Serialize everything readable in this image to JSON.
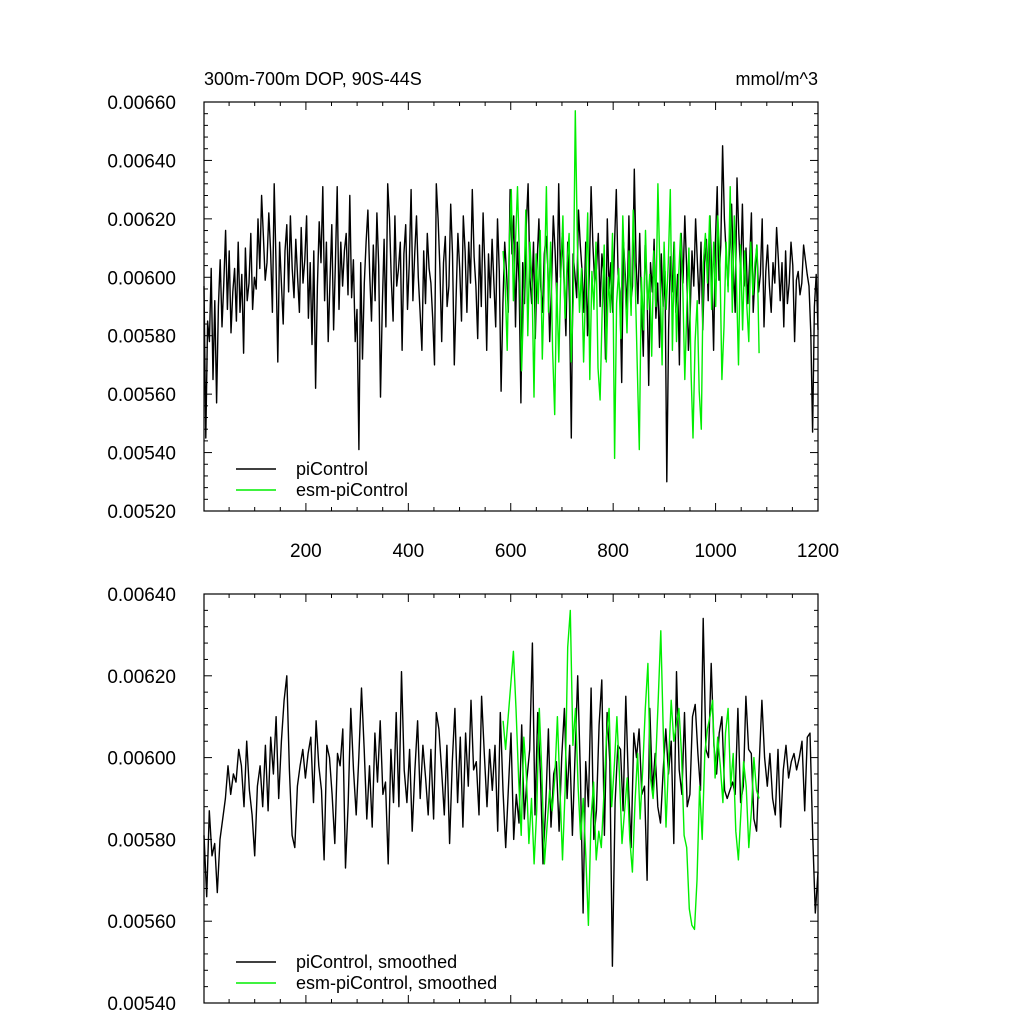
{
  "chart_data": [
    {
      "type": "line",
      "title": "300m-700m DOP, 90S-44S",
      "units": "mmol/m^3",
      "xlim": [
        1,
        1200
      ],
      "ylim": [
        0.0052,
        0.0066
      ],
      "x_ticks": [
        200,
        400,
        600,
        800,
        1000,
        1200
      ],
      "y_ticks": [
        "0.00520",
        "0.00540",
        "0.00560",
        "0.00580",
        "0.00600",
        "0.00620",
        "0.00640",
        "0.00660"
      ],
      "legend_position": "bottom-left",
      "series": [
        {
          "name": "piControl",
          "color": "#000000",
          "x_start": 1,
          "x_end": 1200,
          "values": [
            0.00597,
            0.00545,
            0.00585,
            0.00578,
            0.00603,
            0.00565,
            0.00592,
            0.00557,
            0.0059,
            0.00606,
            0.00583,
            0.00598,
            0.00616,
            0.00589,
            0.00609,
            0.00581,
            0.00595,
            0.00603,
            0.00585,
            0.00612,
            0.00588,
            0.00601,
            0.00574,
            0.0061,
            0.00592,
            0.00598,
            0.00615,
            0.00589,
            0.006,
            0.00596,
            0.0062,
            0.00603,
            0.00628,
            0.00614,
            0.00599,
            0.00605,
            0.00622,
            0.00609,
            0.00588,
            0.00632,
            0.00605,
            0.00571,
            0.00612,
            0.00598,
            0.00584,
            0.00609,
            0.00618,
            0.00595,
            0.00621,
            0.00603,
            0.00593,
            0.00613,
            0.006,
            0.00588,
            0.00617,
            0.00598,
            0.00606,
            0.00621,
            0.00586,
            0.00605,
            0.00577,
            0.00609,
            0.00562,
            0.00597,
            0.00619,
            0.00605,
            0.00631,
            0.00592,
            0.00612,
            0.00578,
            0.00599,
            0.00618,
            0.00582,
            0.00605,
            0.00631,
            0.00589,
            0.00612,
            0.00597,
            0.00609,
            0.00615,
            0.00594,
            0.00628,
            0.00593,
            0.00606,
            0.00578,
            0.00589,
            0.00541,
            0.00605,
            0.00572,
            0.00598,
            0.00612,
            0.00623,
            0.00601,
            0.00585,
            0.00611,
            0.00592,
            0.00622,
            0.00604,
            0.00559,
            0.0059,
            0.00613,
            0.00583,
            0.00632,
            0.0062,
            0.00599,
            0.00585,
            0.00621,
            0.00597,
            0.00603,
            0.00612,
            0.00575,
            0.00608,
            0.00618,
            0.00589,
            0.00605,
            0.0063,
            0.00592,
            0.00608,
            0.00621,
            0.006,
            0.00588,
            0.00575,
            0.00609,
            0.00591,
            0.00615,
            0.00603,
            0.00598,
            0.00586,
            0.0057,
            0.00632,
            0.0062,
            0.00603,
            0.00578,
            0.00605,
            0.00614,
            0.0059,
            0.00597,
            0.00625,
            0.00608,
            0.0057,
            0.00593,
            0.00615,
            0.00603,
            0.00585,
            0.00621,
            0.00609,
            0.00588,
            0.00612,
            0.00598,
            0.0063,
            0.00607,
            0.00597,
            0.00579,
            0.00611,
            0.0059,
            0.00622,
            0.00603,
            0.00575,
            0.00608,
            0.00593,
            0.00613,
            0.00598,
            0.00583,
            0.0062,
            0.00602,
            0.00561,
            0.00591,
            0.00612,
            0.00602,
            0.00588,
            0.0063,
            0.00608,
            0.00621,
            0.00583,
            0.00612,
            0.00598,
            0.00557,
            0.00605,
            0.00591,
            0.00618,
            0.00632,
            0.006,
            0.00591,
            0.00612,
            0.00579,
            0.00605,
            0.0062,
            0.00597,
            0.00588,
            0.00608,
            0.00614,
            0.00603,
            0.00578,
            0.00597,
            0.00621,
            0.00609,
            0.00592,
            0.00632,
            0.006,
            0.00615,
            0.00598,
            0.0058,
            0.00612,
            0.00591,
            0.00545,
            0.00608,
            0.00601,
            0.00593,
            0.00623,
            0.00611,
            0.00602,
            0.00588,
            0.00612,
            0.0058,
            0.00601,
            0.00631,
            0.00611,
            0.00598,
            0.00603,
            0.00615,
            0.0059,
            0.00608,
            0.00601,
            0.00572,
            0.0062,
            0.00596,
            0.00605,
            0.00588,
            0.00611,
            0.0063,
            0.00601,
            0.00595,
            0.00564,
            0.00612,
            0.00601,
            0.00589,
            0.00621,
            0.00591,
            0.00597,
            0.00637,
            0.00605,
            0.00591,
            0.00615,
            0.0059,
            0.00573,
            0.00611,
            0.00599,
            0.00563,
            0.00605,
            0.00595,
            0.00613,
            0.00586,
            0.00598,
            0.00576,
            0.00608,
            0.0059,
            0.00602,
            0.0053,
            0.00582,
            0.00607,
            0.00595,
            0.00612,
            0.00588,
            0.00601,
            0.0057,
            0.00615,
            0.00598,
            0.00621,
            0.00604,
            0.00575,
            0.00588,
            0.00609,
            0.00597,
            0.0062,
            0.00605,
            0.00591,
            0.00612,
            0.00582,
            0.00605,
            0.00613,
            0.00592,
            0.00621,
            0.006,
            0.00575,
            0.00612,
            0.00631,
            0.00599,
            0.00611,
            0.00645,
            0.0062,
            0.00608,
            0.00597,
            0.00612,
            0.00625,
            0.00603,
            0.00588,
            0.00634,
            0.00615,
            0.00601,
            0.00625,
            0.00597,
            0.0061,
            0.00591,
            0.00605,
            0.00622,
            0.00588,
            0.00601,
            0.00611,
            0.00595,
            0.00601,
            0.0062,
            0.00583,
            0.00602,
            0.00611,
            0.00597,
            0.00588,
            0.00605,
            0.00598,
            0.00617,
            0.00606,
            0.00592,
            0.00605,
            0.00583,
            0.00609,
            0.00591,
            0.00598,
            0.00612,
            0.00604,
            0.00578,
            0.00599,
            0.00602,
            0.00594,
            0.00598,
            0.00611,
            0.00606,
            0.00601,
            0.00597,
            0.00581,
            0.00547,
            0.0059,
            0.00601,
            0.00582
          ]
        },
        {
          "name": "esm-piControl",
          "color": "#00ee00",
          "x_start": 585,
          "x_end": 1085,
          "values": [
            0.00609,
            0.00598,
            0.00575,
            0.00612,
            0.0063,
            0.00592,
            0.00612,
            0.00631,
            0.00605,
            0.00568,
            0.00592,
            0.00623,
            0.0058,
            0.00612,
            0.00598,
            0.00559,
            0.00608,
            0.00591,
            0.00616,
            0.00572,
            0.00599,
            0.00631,
            0.00588,
            0.00612,
            0.00575,
            0.00553,
            0.00598,
            0.00571,
            0.00602,
            0.00621,
            0.00586,
            0.00605,
            0.00615,
            0.00571,
            0.00592,
            0.00657,
            0.00611,
            0.00588,
            0.00603,
            0.00571,
            0.00598,
            0.00622,
            0.00565,
            0.00602,
            0.00589,
            0.00612,
            0.00569,
            0.00558,
            0.00589,
            0.00611,
            0.00571,
            0.006,
            0.00588,
            0.00615,
            0.00538,
            0.00591,
            0.00603,
            0.00579,
            0.00621,
            0.00599,
            0.00581,
            0.00609,
            0.00587,
            0.00623,
            0.00599,
            0.00569,
            0.00541,
            0.006,
            0.00582,
            0.00616,
            0.00589,
            0.00601,
            0.00573,
            0.00609,
            0.0059,
            0.00632,
            0.00601,
            0.0057,
            0.00612,
            0.00589,
            0.00605,
            0.0063,
            0.00575,
            0.00612,
            0.00578,
            0.006,
            0.00615,
            0.00598,
            0.00565,
            0.00589,
            0.0061,
            0.00568,
            0.00545,
            0.00578,
            0.00592,
            0.00561,
            0.00548,
            0.00605,
            0.00615,
            0.00598,
            0.00621,
            0.00589,
            0.00612,
            0.0059,
            0.00621,
            0.00606,
            0.00565,
            0.00583,
            0.00612,
            0.00595,
            0.00631,
            0.00588,
            0.00621,
            0.00599,
            0.0057,
            0.00611,
            0.00582,
            0.00609,
            0.00591,
            0.00578,
            0.00612,
            0.00594,
            0.00605,
            0.00611,
            0.00574
          ]
        }
      ]
    },
    {
      "type": "line",
      "title": "",
      "xlim": [
        1,
        1200
      ],
      "ylim": [
        0.0054,
        0.0064
      ],
      "y_ticks": [
        "0.00540",
        "0.00560",
        "0.00580",
        "0.00600",
        "0.00620",
        "0.00640"
      ],
      "legend_position": "bottom-left",
      "series": [
        {
          "name": "piControl, smoothed",
          "color": "#000000",
          "x_start": 1,
          "x_end": 1200,
          "values": [
            0.00581,
            0.00566,
            0.00587,
            0.00576,
            0.00579,
            0.00567,
            0.0058,
            0.00585,
            0.0059,
            0.00598,
            0.00591,
            0.00596,
            0.00594,
            0.00602,
            0.00598,
            0.00588,
            0.00604,
            0.00592,
            0.00586,
            0.00576,
            0.00593,
            0.00598,
            0.00588,
            0.00603,
            0.00587,
            0.00605,
            0.00596,
            0.0061,
            0.0059,
            0.00604,
            0.00614,
            0.0062,
            0.00597,
            0.00581,
            0.00578,
            0.00593,
            0.00598,
            0.00602,
            0.00595,
            0.00601,
            0.00605,
            0.00589,
            0.00609,
            0.00598,
            0.00592,
            0.00575,
            0.00603,
            0.006,
            0.00591,
            0.00579,
            0.00601,
            0.00598,
            0.00607,
            0.00573,
            0.00589,
            0.00612,
            0.00597,
            0.00586,
            0.006,
            0.00617,
            0.00602,
            0.00585,
            0.00598,
            0.00583,
            0.00606,
            0.00594,
            0.00609,
            0.00591,
            0.00594,
            0.00574,
            0.00602,
            0.00589,
            0.00611,
            0.00588,
            0.00621,
            0.00597,
            0.00589,
            0.00602,
            0.00582,
            0.00597,
            0.00609,
            0.0059,
            0.00603,
            0.00595,
            0.00586,
            0.00602,
            0.00585,
            0.00611,
            0.00607,
            0.00597,
            0.00586,
            0.00603,
            0.00579,
            0.00599,
            0.00612,
            0.00589,
            0.00605,
            0.00583,
            0.00606,
            0.00593,
            0.00614,
            0.00597,
            0.00599,
            0.00586,
            0.00615,
            0.00601,
            0.00588,
            0.00602,
            0.00592,
            0.00603,
            0.00582,
            0.00611,
            0.00592,
            0.00578,
            0.00592,
            0.00606,
            0.0058,
            0.00591,
            0.00584,
            0.00608,
            0.00585,
            0.00595,
            0.00602,
            0.00628,
            0.00586,
            0.00611,
            0.00596,
            0.00574,
            0.00588,
            0.00607,
            0.00583,
            0.00596,
            0.00599,
            0.00582,
            0.006,
            0.00612,
            0.0059,
            0.00603,
            0.00581,
            0.00601,
            0.0062,
            0.00596,
            0.00562,
            0.00599,
            0.00588,
            0.00617,
            0.0058,
            0.00587,
            0.00608,
            0.00619,
            0.00581,
            0.00611,
            0.00599,
            0.00549,
            0.00589,
            0.00603,
            0.00602,
            0.00587,
            0.00615,
            0.00593,
            0.00578,
            0.00606,
            0.006,
            0.00607,
            0.00591,
            0.00593,
            0.0057,
            0.00612,
            0.00592,
            0.00601,
            0.00588,
            0.00584,
            0.00597,
            0.00607,
            0.00596,
            0.00604,
            0.00579,
            0.00621,
            0.00597,
            0.00591,
            0.00611,
            0.00588,
            0.00591,
            0.0061,
            0.00613,
            0.00601,
            0.00592,
            0.00634,
            0.00602,
            0.006,
            0.00623,
            0.00603,
            0.00596,
            0.00606,
            0.0061,
            0.00592,
            0.0059,
            0.00592,
            0.00594,
            0.00591,
            0.00612,
            0.00589,
            0.00593,
            0.00615,
            0.00602,
            0.00601,
            0.00585,
            0.00582,
            0.00599,
            0.00614,
            0.006,
            0.00593,
            0.00601,
            0.0059,
            0.00586,
            0.00602,
            0.00583,
            0.00597,
            0.00603,
            0.00595,
            0.00599,
            0.00601,
            0.00597,
            0.006,
            0.00604,
            0.00587,
            0.00605,
            0.00606,
            0.00581,
            0.00562,
            0.00572
          ]
        },
        {
          "name": "esm-piControl, smoothed",
          "color": "#00ee00",
          "x_start": 585,
          "x_end": 1085,
          "values": [
            0.00609,
            0.00602,
            0.0061,
            0.00618,
            0.00626,
            0.00612,
            0.00595,
            0.00581,
            0.00605,
            0.00596,
            0.00579,
            0.0059,
            0.00574,
            0.00587,
            0.00612,
            0.00596,
            0.00574,
            0.00583,
            0.00592,
            0.00587,
            0.00595,
            0.0061,
            0.00592,
            0.00575,
            0.00592,
            0.00627,
            0.00636,
            0.00603,
            0.00612,
            0.00593,
            0.0058,
            0.0059,
            0.00576,
            0.00559,
            0.00585,
            0.00594,
            0.00575,
            0.00582,
            0.00578,
            0.00591,
            0.00605,
            0.00612,
            0.00588,
            0.00598,
            0.0061,
            0.00596,
            0.00579,
            0.00587,
            0.00595,
            0.0058,
            0.00572,
            0.00589,
            0.00601,
            0.00585,
            0.00597,
            0.00612,
            0.00623,
            0.00595,
            0.0059,
            0.00599,
            0.00614,
            0.00631,
            0.00605,
            0.00583,
            0.00599,
            0.00614,
            0.00604,
            0.00608,
            0.00612,
            0.00601,
            0.00581,
            0.00578,
            0.00563,
            0.00559,
            0.00558,
            0.0057,
            0.00593,
            0.0058,
            0.00601,
            0.00607,
            0.0061,
            0.00614,
            0.00595,
            0.00605,
            0.00598,
            0.00589,
            0.00606,
            0.00612,
            0.00593,
            0.00601,
            0.00582,
            0.00575,
            0.00587,
            0.00599,
            0.00593,
            0.00578,
            0.00587,
            0.006,
            0.00592,
            0.0059
          ]
        }
      ]
    }
  ]
}
